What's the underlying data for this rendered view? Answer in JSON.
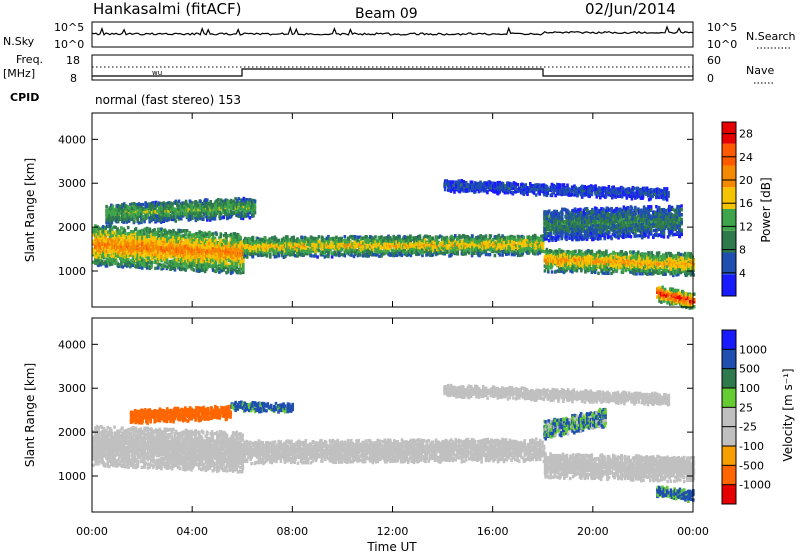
{
  "header": {
    "station": "Hankasalmi (fitACF)",
    "beam": "Beam 09",
    "date": "02/Jun/2014"
  },
  "strip_panels": {
    "nsky": {
      "label": "N.Sky",
      "tick_top": "10^5",
      "tick_bottom": "10^0",
      "right_label": "N.Search",
      "right_tick_top": "10^5",
      "right_tick_bottom": "10^0"
    },
    "freq": {
      "label_line1": "Freq.",
      "label_line2": "[MHz]",
      "tick_top": "18",
      "tick_bottom": "8",
      "right_label": "Nave",
      "right_tick_top": "60",
      "right_tick_bottom": "0"
    },
    "cpid": {
      "label": "CPID",
      "mode_text": "normal (fast stereo) 153"
    }
  },
  "colors": {
    "power_scale": [
      "#1a1aff",
      "#1f4fb0",
      "#2e7a4d",
      "#3fa54a",
      "#f5c400",
      "#f58a00",
      "#ff5a00",
      "#e60000"
    ],
    "velocity_scale": [
      "#1a1aff",
      "#1f4fb0",
      "#2e7a4d",
      "#66cc33",
      "#c0c0c0",
      "#c0c0c0",
      "#f5a000",
      "#ff6600",
      "#e60000"
    ],
    "ground_scatter": "#c0c0c0"
  },
  "chart_data": [
    {
      "type": "heatmap",
      "title": "",
      "xlabel": "",
      "ylabel": "Slant Range [km]",
      "x_ticks": [
        "00:00",
        "04:00",
        "08:00",
        "12:00",
        "16:00",
        "20:00",
        "00:00"
      ],
      "xlim_hours": [
        0,
        24
      ],
      "y_ticks": [
        1000,
        2000,
        3000,
        4000
      ],
      "ylim": [
        180,
        4600
      ],
      "colorbar": {
        "label": "Power [dB]",
        "ticks": [
          4,
          8,
          12,
          16,
          20,
          24,
          28
        ],
        "range": [
          0,
          30
        ]
      },
      "echo_bands": [
        {
          "hour_start": 0.0,
          "hour_end": 6.0,
          "range_center_start": 1650,
          "range_center_end": 1450,
          "width_km": 900,
          "power_db": 22
        },
        {
          "hour_start": 0.5,
          "hour_end": 6.5,
          "range_center_start": 2350,
          "range_center_end": 2500,
          "width_km": 450,
          "power_db": 14
        },
        {
          "hour_start": 6.0,
          "hour_end": 18.0,
          "range_center_start": 1600,
          "range_center_end": 1650,
          "width_km": 450,
          "power_db": 18
        },
        {
          "hour_start": 18.0,
          "hour_end": 24.0,
          "range_center_start": 1300,
          "range_center_end": 1200,
          "width_km": 500,
          "power_db": 20
        },
        {
          "hour_start": 18.0,
          "hour_end": 23.5,
          "range_center_start": 2100,
          "range_center_end": 2200,
          "width_km": 700,
          "power_db": 10
        },
        {
          "hour_start": 14.0,
          "hour_end": 23.0,
          "range_center_start": 3000,
          "range_center_end": 2800,
          "width_km": 250,
          "power_db": 6
        },
        {
          "hour_start": 22.5,
          "hour_end": 24.0,
          "range_center_start": 550,
          "range_center_end": 350,
          "width_km": 350,
          "power_db": 28
        }
      ]
    },
    {
      "type": "heatmap",
      "title": "",
      "xlabel": "Time UT",
      "ylabel": "Slant Range [km]",
      "x_ticks": [
        "00:00",
        "04:00",
        "08:00",
        "12:00",
        "16:00",
        "20:00",
        "00:00"
      ],
      "xlim_hours": [
        0,
        24
      ],
      "y_ticks": [
        1000,
        2000,
        3000,
        4000
      ],
      "ylim": [
        180,
        4600
      ],
      "colorbar": {
        "label": "Velocity [m s⁻¹]",
        "ticks": [
          1000,
          500,
          100,
          25,
          -25,
          -100,
          -500,
          -1000
        ]
      },
      "echo_bands": [
        {
          "hour_start": 0.0,
          "hour_end": 6.0,
          "range_center_start": 1750,
          "range_center_end": 1600,
          "width_km": 900,
          "velocity": 0
        },
        {
          "hour_start": 6.0,
          "hour_end": 18.0,
          "range_center_start": 1600,
          "range_center_end": 1650,
          "width_km": 500,
          "velocity": 0
        },
        {
          "hour_start": 18.0,
          "hour_end": 24.0,
          "range_center_start": 1300,
          "range_center_end": 1200,
          "width_km": 550,
          "velocity": 0
        },
        {
          "hour_start": 1.5,
          "hour_end": 5.5,
          "range_center_start": 2400,
          "range_center_end": 2500,
          "width_km": 300,
          "velocity": -300
        },
        {
          "hour_start": 5.5,
          "hour_end": 8.0,
          "range_center_start": 2650,
          "range_center_end": 2600,
          "width_km": 200,
          "velocity": 150
        },
        {
          "hour_start": 18.0,
          "hour_end": 20.5,
          "range_center_start": 2100,
          "range_center_end": 2400,
          "width_km": 400,
          "velocity": 100
        },
        {
          "hour_start": 22.5,
          "hour_end": 24.0,
          "range_center_start": 700,
          "range_center_end": 600,
          "width_km": 250,
          "velocity": 150
        },
        {
          "hour_start": 14.0,
          "hour_end": 23.0,
          "range_center_start": 3000,
          "range_center_end": 2800,
          "width_km": 250,
          "velocity": 0
        }
      ]
    }
  ]
}
